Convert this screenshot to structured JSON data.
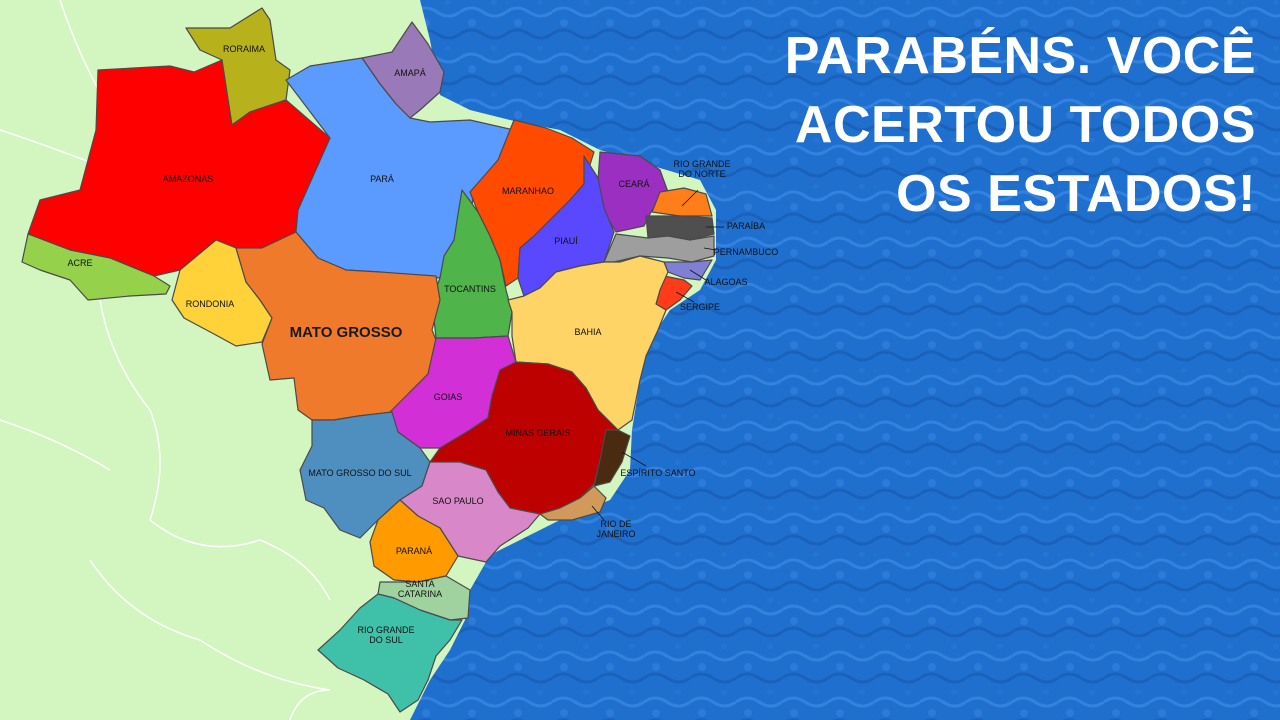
{
  "message": {
    "lines": [
      "PARABÉNS. VOCÊ",
      "ACERTOU TODOS",
      "OS ESTADOS!"
    ]
  },
  "colors": {
    "ocean": "#1f6fcf",
    "ocean_light": "#3d8be6",
    "land": "#d3f5c0",
    "border": "#ffffff"
  },
  "states": [
    {
      "id": "roraima",
      "name": "RORAIMA",
      "color": "#b7b21b"
    },
    {
      "id": "amapa",
      "name": "AMAPÁ",
      "color": "#9a79b8"
    },
    {
      "id": "amazonas",
      "name": "AMAZONAS",
      "color": "#ff0000"
    },
    {
      "id": "para",
      "name": "PARÁ",
      "color": "#5b9bff"
    },
    {
      "id": "maranhao",
      "name": "MARANHAO",
      "color": "#ff4a00"
    },
    {
      "id": "ceara",
      "name": "CEARÁ",
      "color": "#9b2fc1"
    },
    {
      "id": "rio-grande-do-norte",
      "name": "RIO GRANDE\nDO NORTE",
      "color": "#ff7e1a"
    },
    {
      "id": "paraiba",
      "name": "PARAÍBA",
      "color": "#4f4f4f"
    },
    {
      "id": "pernambuco",
      "name": "PERNAMBUCO",
      "color": "#9e9e9e"
    },
    {
      "id": "alagoas",
      "name": "ALAGOAS",
      "color": "#7f7fd6"
    },
    {
      "id": "sergipe",
      "name": "SERGIPE",
      "color": "#ff3b1a"
    },
    {
      "id": "piaui",
      "name": "PIAUÍ",
      "color": "#5a48ff"
    },
    {
      "id": "acre",
      "name": "ACRE",
      "color": "#95d14a"
    },
    {
      "id": "rondonia",
      "name": "RONDONIA",
      "color": "#ffd23a"
    },
    {
      "id": "mato-grosso",
      "name": "MATO GROSSO",
      "color": "#f07a2c"
    },
    {
      "id": "tocantins",
      "name": "TOCANTINS",
      "color": "#4fb44a"
    },
    {
      "id": "bahia",
      "name": "BAHIA",
      "color": "#ffd466"
    },
    {
      "id": "goias",
      "name": "GOIAS",
      "color": "#d22fd6"
    },
    {
      "id": "minas-gerais",
      "name": "MINAS GERAIS",
      "color": "#bd0000"
    },
    {
      "id": "espirito-santo",
      "name": "ESPÍRITO SANTO",
      "color": "#4a2a10"
    },
    {
      "id": "mato-grosso-do-sul",
      "name": "MATO GROSSO DO SUL",
      "color": "#4f8fc0"
    },
    {
      "id": "sao-paulo",
      "name": "SAO PAULO",
      "color": "#d888c8"
    },
    {
      "id": "rio-de-janeiro",
      "name": "RIO DE\nJANEIRO",
      "color": "#d19a5a"
    },
    {
      "id": "parana",
      "name": "PARANÁ",
      "color": "#ff9a00"
    },
    {
      "id": "santa-catarina",
      "name": "SANTA\nCATARINA",
      "color": "#9fd29f"
    },
    {
      "id": "rio-grande-do-sul",
      "name": "RIO GRANDE\nDO SUL",
      "color": "#3fc0a8"
    }
  ]
}
